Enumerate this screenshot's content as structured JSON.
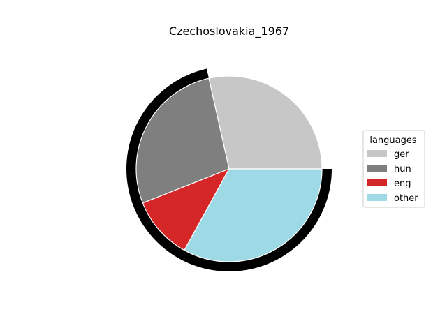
{
  "chart_data": {
    "type": "pie",
    "title": "Czechoslovakia_1967",
    "legend_title": "languages",
    "legend_position": "right",
    "start_angle_deg": 0,
    "direction": "counterclockwise",
    "categories": [
      "ger",
      "hun",
      "eng",
      "other"
    ],
    "values": [
      28.5,
      27.5,
      11.0,
      33.0
    ],
    "colors": [
      "#c7c7c7",
      "#7f7f7f",
      "#d62728",
      "#9edae5"
    ],
    "highlight_ring": {
      "color": "#000000",
      "from_category": "hun",
      "to_category": "other"
    }
  }
}
